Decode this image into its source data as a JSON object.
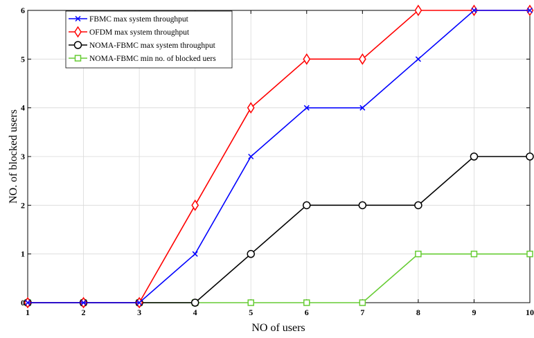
{
  "chart_data": {
    "type": "line",
    "xlabel": "NO of users",
    "ylabel": "NO. of blocked users",
    "xlim": [
      1,
      10
    ],
    "ylim": [
      0,
      6
    ],
    "x_ticks": [
      1,
      2,
      3,
      4,
      5,
      6,
      7,
      8,
      9,
      10
    ],
    "y_ticks": [
      0,
      1,
      2,
      3,
      4,
      5,
      6
    ],
    "grid": true,
    "legend_position": "top-left",
    "series": [
      {
        "name": "FBMC max system throughput",
        "color": "#0000ff",
        "marker": "x",
        "x": [
          1,
          2,
          3,
          4,
          5,
          6,
          7,
          8,
          9,
          10
        ],
        "y": [
          0,
          0,
          0,
          1,
          3,
          4,
          4,
          5,
          6,
          6
        ]
      },
      {
        "name": "OFDM max system throughput",
        "color": "#ff0000",
        "marker": "diamond",
        "x": [
          1,
          2,
          3,
          4,
          5,
          6,
          7,
          8,
          9,
          10
        ],
        "y": [
          0,
          0,
          0,
          2,
          4,
          5,
          5,
          6,
          6,
          6
        ]
      },
      {
        "name": "NOMA-FBMC max system throughput",
        "color": "#000000",
        "marker": "circle",
        "x": [
          1,
          2,
          3,
          4,
          5,
          6,
          7,
          8,
          9,
          10
        ],
        "y": [
          0,
          0,
          0,
          0,
          1,
          2,
          2,
          2,
          3,
          3
        ]
      },
      {
        "name": "NOMA-FBMC min no. of blocked uers",
        "color": "#66cc33",
        "marker": "square",
        "x": [
          1,
          2,
          3,
          4,
          5,
          6,
          7,
          8,
          9,
          10
        ],
        "y": [
          0,
          0,
          0,
          0,
          0,
          0,
          0,
          1,
          1,
          1
        ]
      }
    ]
  }
}
